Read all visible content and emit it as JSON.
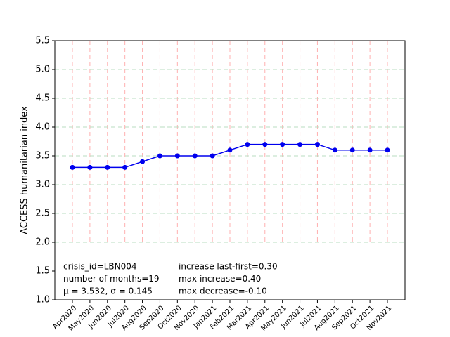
{
  "chart_data": {
    "type": "line",
    "y_label": "ACCESS humanitarian index",
    "categories": [
      "Apr2020",
      "May2020",
      "Jun2020",
      "Jul2020",
      "Aug2020",
      "Sep2020",
      "Oct2020",
      "Nov2020",
      "Jan2021",
      "Feb2021",
      "Mar2021",
      "Apr2021",
      "May2021",
      "Jun2021",
      "Jul2021",
      "Aug2021",
      "Sep2021",
      "Oct2021",
      "Nov2021"
    ],
    "series": [
      {
        "color": "#0000ee",
        "values": [
          3.3,
          3.3,
          3.3,
          3.3,
          3.4,
          3.5,
          3.5,
          3.5,
          3.5,
          3.6,
          3.7,
          3.7,
          3.7,
          3.7,
          3.7,
          3.6,
          3.6,
          3.6,
          3.6
        ]
      }
    ],
    "ylim": [
      1.0,
      5.5
    ],
    "yticks": [
      {
        "value": 1.0,
        "label": "1.0"
      },
      {
        "value": 1.5,
        "label": "1.5"
      },
      {
        "value": 2.0,
        "label": "2.0"
      },
      {
        "value": 2.5,
        "label": "2.5"
      },
      {
        "value": 3.0,
        "label": "3.0"
      },
      {
        "value": 3.5,
        "label": "3.5"
      },
      {
        "value": 4.0,
        "label": "4.0"
      },
      {
        "value": 4.5,
        "label": "4.5"
      },
      {
        "value": 5.0,
        "label": "5.0"
      },
      {
        "value": 5.5,
        "label": "5.5"
      }
    ],
    "grid": true,
    "annotations": [
      [
        "crisis_id=LBN004",
        "number of months=19",
        "μ = 3.532,  σ = 0.145"
      ],
      [
        "increase last-first=0.30",
        "max increase=0.40",
        "max decrease=-0.10"
      ]
    ]
  }
}
